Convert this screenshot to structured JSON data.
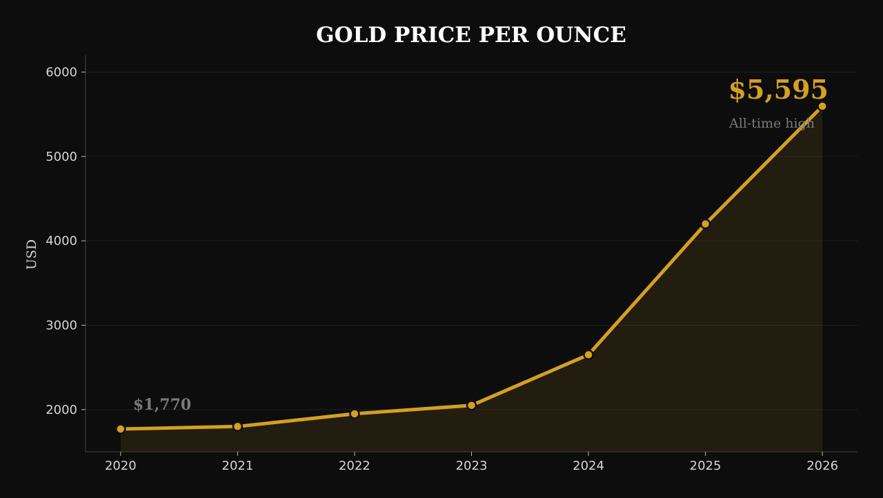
{
  "chart_data": {
    "type": "line",
    "title": "GOLD PRICE PER OUNCE",
    "xlabel": "",
    "ylabel": "USD",
    "x": [
      2020,
      2021,
      2022,
      2023,
      2024,
      2025,
      2026
    ],
    "y": [
      1770,
      1800,
      1950,
      2050,
      2650,
      4200,
      5595
    ],
    "xlim": [
      2019.7,
      2026.3
    ],
    "ylim": [
      1500,
      6200
    ],
    "yticks": [
      2000,
      3000,
      4000,
      5000,
      6000
    ],
    "xticks": [
      2020,
      2021,
      2022,
      2023,
      2024,
      2025,
      2026
    ],
    "grid": true,
    "area_fill": true,
    "annotations": {
      "start_value": "$1,770",
      "high_value": "$5,595",
      "high_label": "All-time high"
    },
    "colors": {
      "line": "#d4a020",
      "background": "#0d0d0d",
      "grid": "#1f1f1f",
      "axis": "#3a3a3a",
      "marker_edge": "#111111",
      "area": "#d4a020"
    }
  }
}
